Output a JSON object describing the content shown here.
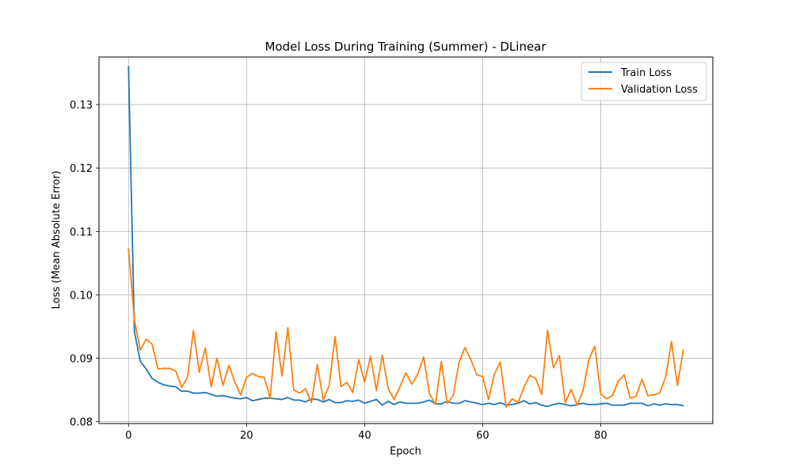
{
  "chart_data": {
    "type": "line",
    "title": "Model Loss During Training (Summer) - DLinear",
    "xlabel": "Epoch",
    "ylabel": "Loss (Mean Absolute Error)",
    "xlim": [
      -5,
      99
    ],
    "ylim": [
      0.0797,
      0.1375
    ],
    "xticks": [
      0,
      20,
      40,
      60,
      80
    ],
    "yticks": [
      0.08,
      0.09,
      0.1,
      0.11,
      0.12,
      0.13
    ],
    "ytick_labels": [
      "0.08",
      "0.09",
      "0.10",
      "0.11",
      "0.12",
      "0.13"
    ],
    "grid": true,
    "legend_position": "top-right",
    "series": [
      {
        "name": "Train Loss",
        "color": "#1f77b4",
        "values": [
          0.136,
          0.0942,
          0.0895,
          0.0883,
          0.0868,
          0.0862,
          0.0858,
          0.0856,
          0.0855,
          0.0848,
          0.0848,
          0.0845,
          0.0845,
          0.0846,
          0.0843,
          0.084,
          0.0841,
          0.0839,
          0.0837,
          0.0836,
          0.0838,
          0.0833,
          0.0835,
          0.0837,
          0.0837,
          0.0836,
          0.0835,
          0.0838,
          0.0834,
          0.0834,
          0.0831,
          0.0836,
          0.0835,
          0.0831,
          0.0835,
          0.083,
          0.083,
          0.0833,
          0.0832,
          0.0834,
          0.0829,
          0.0832,
          0.0835,
          0.0826,
          0.0832,
          0.0827,
          0.0831,
          0.0829,
          0.0829,
          0.0829,
          0.0831,
          0.0834,
          0.0828,
          0.0828,
          0.0832,
          0.0829,
          0.0829,
          0.0833,
          0.0831,
          0.0829,
          0.0827,
          0.0829,
          0.0827,
          0.083,
          0.0826,
          0.0827,
          0.0829,
          0.0833,
          0.0828,
          0.083,
          0.0826,
          0.0824,
          0.0827,
          0.0829,
          0.0827,
          0.0825,
          0.0827,
          0.0829,
          0.0827,
          0.0827,
          0.0828,
          0.0829,
          0.0826,
          0.0826,
          0.0826,
          0.0829,
          0.0829,
          0.0829,
          0.0825,
          0.0828,
          0.0826,
          0.0828,
          0.0827,
          0.0827,
          0.0825
        ]
      },
      {
        "name": "Validation Loss",
        "color": "#ff7f0e",
        "values": [
          0.1072,
          0.096,
          0.0913,
          0.093,
          0.0922,
          0.0883,
          0.0884,
          0.0884,
          0.088,
          0.0854,
          0.087,
          0.0944,
          0.0878,
          0.0916,
          0.0855,
          0.09,
          0.0857,
          0.0889,
          0.0863,
          0.0842,
          0.087,
          0.0876,
          0.0871,
          0.087,
          0.0837,
          0.0942,
          0.0872,
          0.0948,
          0.085,
          0.0845,
          0.0852,
          0.083,
          0.089,
          0.0834,
          0.0857,
          0.0934,
          0.0855,
          0.0862,
          0.0846,
          0.0898,
          0.0862,
          0.0903,
          0.0849,
          0.0905,
          0.0852,
          0.0835,
          0.0855,
          0.0877,
          0.0859,
          0.0875,
          0.0902,
          0.0844,
          0.0827,
          0.0895,
          0.0829,
          0.0841,
          0.0893,
          0.0917,
          0.0898,
          0.0874,
          0.0871,
          0.0835,
          0.0875,
          0.0894,
          0.0823,
          0.0836,
          0.083,
          0.0854,
          0.0873,
          0.0868,
          0.0843,
          0.0944,
          0.0885,
          0.0904,
          0.083,
          0.0851,
          0.0826,
          0.0848,
          0.0898,
          0.0919,
          0.0844,
          0.0836,
          0.0841,
          0.0864,
          0.0874,
          0.0837,
          0.084,
          0.0867,
          0.0841,
          0.0842,
          0.0845,
          0.087,
          0.0926,
          0.0857,
          0.0913
        ]
      }
    ]
  }
}
